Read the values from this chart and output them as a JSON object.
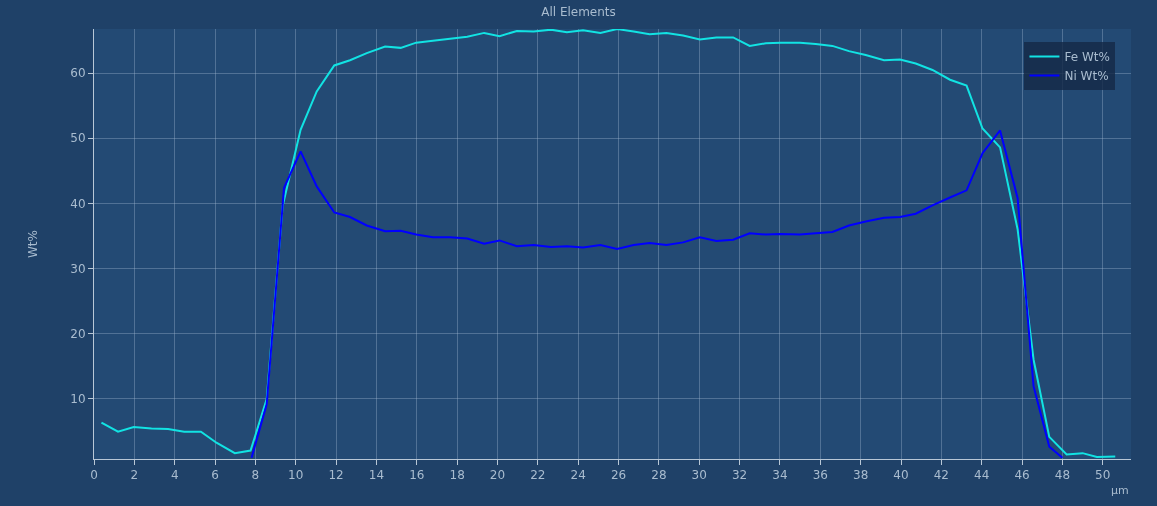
{
  "chart_data": {
    "type": "line",
    "title": "All Elements",
    "xlabel": "µm",
    "ylabel": "Wt%",
    "xlim": [
      0,
      51.4
    ],
    "xticks": [
      0,
      2,
      4,
      6,
      8,
      10,
      12,
      14,
      16,
      18,
      20,
      22,
      24,
      26,
      28,
      30,
      32,
      34,
      36,
      38,
      40,
      42,
      44,
      46,
      48,
      50
    ],
    "ylim": [
      0.7,
      66.8
    ],
    "yticks": [
      10,
      20,
      30,
      40,
      50,
      60
    ],
    "grid": true,
    "legend": "top right",
    "marker": "none",
    "line_style": "solid",
    "series": [
      {
        "name": "Fe Wt%",
        "color": "#12e3e3",
        "x": [
          0.37,
          1.19,
          1.97,
          2.85,
          3.67,
          4.47,
          5.3,
          6.07,
          6.98,
          7.76,
          8.56,
          9.35,
          10.24,
          11.04,
          11.91,
          12.69,
          13.52,
          14.43,
          15.2,
          15.97,
          16.8,
          17.65,
          18.5,
          19.34,
          20.1,
          20.96,
          21.79,
          22.65,
          23.44,
          24.24,
          25.1,
          25.93,
          26.75,
          27.54,
          28.37,
          29.2,
          30.03,
          30.85,
          31.68,
          32.5,
          33.3,
          34.03,
          34.99,
          35.77,
          36.6,
          37.42,
          38.25,
          39.16,
          39.95,
          40.73,
          41.56,
          42.43,
          43.25,
          44.04,
          44.91,
          45.78,
          46.57,
          47.35,
          48.21,
          49.0,
          49.71,
          50.62
        ],
        "values": [
          6.3,
          4.9,
          5.6,
          5.4,
          5.3,
          4.9,
          4.9,
          3.2,
          1.6,
          2.0,
          9.9,
          39.6,
          51.3,
          57.2,
          61.2,
          62.0,
          63.1,
          64.1,
          63.9,
          64.7,
          65.0,
          65.3,
          65.6,
          66.2,
          65.7,
          66.5,
          66.4,
          66.7,
          66.3,
          66.6,
          66.2,
          66.8,
          66.4,
          66.0,
          66.2,
          65.8,
          65.2,
          65.5,
          65.5,
          64.2,
          64.6,
          64.7,
          64.7,
          64.5,
          64.2,
          63.4,
          62.8,
          62.0,
          62.1,
          61.5,
          60.5,
          59.0,
          58.1,
          51.5,
          48.6,
          36.0,
          16.0,
          4.1,
          1.4,
          1.6,
          1.0,
          1.1
        ]
      },
      {
        "name": "Ni Wt%",
        "color": "#0000ff",
        "x": [
          7.81,
          8.56,
          9.42,
          10.24,
          11.04,
          11.91,
          12.69,
          13.52,
          14.43,
          15.2,
          15.97,
          16.8,
          17.65,
          18.5,
          19.34,
          20.1,
          20.96,
          21.79,
          22.65,
          23.44,
          24.24,
          25.1,
          25.93,
          26.75,
          27.54,
          28.37,
          29.2,
          30.03,
          30.85,
          31.68,
          32.5,
          33.3,
          34.03,
          34.99,
          35.77,
          36.6,
          37.42,
          38.25,
          39.16,
          39.95,
          40.73,
          41.56,
          42.43,
          43.25,
          44.04,
          44.91,
          45.78,
          46.57,
          47.35,
          48.0
        ],
        "values": [
          0.9,
          9.1,
          42.4,
          48.0,
          42.6,
          38.6,
          37.9,
          36.6,
          35.7,
          35.8,
          35.2,
          34.8,
          34.8,
          34.6,
          33.8,
          34.3,
          33.4,
          33.6,
          33.3,
          33.4,
          33.2,
          33.6,
          33.0,
          33.6,
          33.9,
          33.6,
          34.0,
          34.8,
          34.2,
          34.4,
          35.4,
          35.2,
          35.3,
          35.2,
          35.4,
          35.6,
          36.6,
          37.2,
          37.8,
          37.9,
          38.4,
          39.7,
          40.9,
          42.0,
          47.7,
          51.2,
          40.8,
          11.9,
          2.6,
          0.9
        ]
      }
    ]
  }
}
